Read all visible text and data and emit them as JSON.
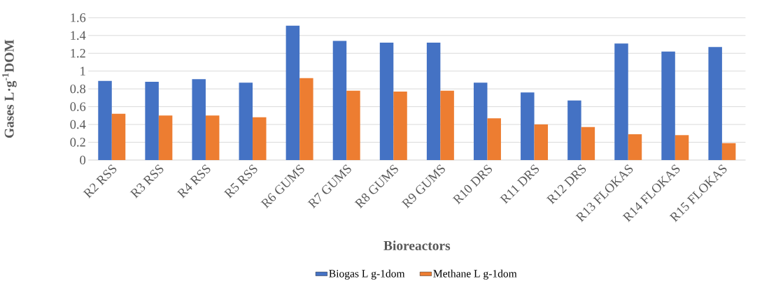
{
  "chart_data": {
    "type": "bar",
    "xlabel": "Bioreactors",
    "ylabel": "Gases L·g$^{-1}$DOM",
    "categories": [
      "R2 RSS",
      "R3 RSS",
      "R4 RSS",
      "R5 RSS",
      "R6 GUMS",
      "R7 GUMS",
      "R8 GUMS",
      "R9 GUMS",
      "R10 DRS",
      "R11 DRS",
      "R12 DRS",
      "R13 FLOKAS",
      "R14 FLOKAS",
      "R15 FLOKAS"
    ],
    "series": [
      {
        "name": "Biogas L g-1dom",
        "color": "#4472c4",
        "values": [
          0.89,
          0.88,
          0.91,
          0.87,
          1.51,
          1.34,
          1.32,
          1.32,
          0.87,
          0.76,
          0.67,
          1.31,
          1.22,
          1.27
        ]
      },
      {
        "name": "Methane L g-1dom",
        "color": "#ed7d31",
        "values": [
          0.52,
          0.5,
          0.5,
          0.48,
          0.92,
          0.78,
          0.77,
          0.78,
          0.47,
          0.4,
          0.37,
          0.29,
          0.28,
          0.19
        ]
      }
    ],
    "ylim": [
      0,
      1.6
    ],
    "yticks": [
      0,
      0.2,
      0.4,
      0.6,
      0.8,
      {
        "value": 1,
        "label": "1"
      },
      1.2,
      1.4,
      1.6
    ],
    "grid": "y",
    "legend": "bottom"
  }
}
